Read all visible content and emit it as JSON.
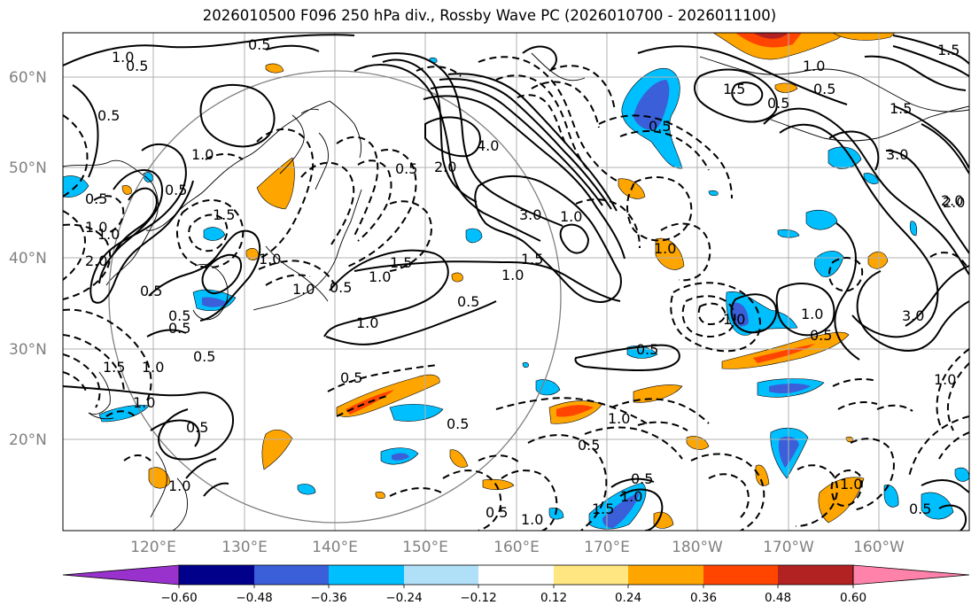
{
  "title": "2026010500 F096 250 hPa div., Rossby Wave PC (2026010700 - 2026011100)",
  "lat_labels": [
    "60°N",
    "50°N",
    "40°N",
    "30°N",
    "20°N"
  ],
  "lon_labels": [
    "120°E",
    "130°E",
    "140°E",
    "150°E",
    "160°E",
    "170°E",
    "180°W",
    "170°W",
    "160°W"
  ],
  "colorbar": {
    "colors": [
      "#9932cc",
      "#00008b",
      "#3a5fd9",
      "#00bfff",
      "#b0e0f8",
      "#ffffff",
      "#ffe680",
      "#ffa500",
      "#ff4500",
      "#b22222",
      "#ff82ab"
    ],
    "tick_labels": [
      "−0.60",
      "−0.48",
      "−0.36",
      "−0.24",
      "−0.12",
      "0.12",
      "0.24",
      "0.36",
      "0.48",
      "0.60"
    ]
  },
  "contour_labels": [
    "0.5",
    "1.0",
    "1.5",
    "2.0",
    "3.0",
    "4.0",
    "0.5",
    "1.0",
    "1.5",
    "0.5",
    "1.0",
    "0.5",
    "1.0",
    "1.5",
    "2.0",
    "1.5",
    "0.5",
    "3.0",
    "1.0",
    "0.5",
    "1.5",
    "0.5",
    "1.0",
    "0.5",
    "1.0",
    "0.5",
    "1.0",
    "3.0",
    "2.0",
    "1.5",
    "1.0",
    "0.5",
    "0.5",
    "1.0",
    "0.5",
    "1.0",
    "0.5",
    "1.0",
    "1.0",
    "0.5",
    "0.5",
    "1.0",
    "0.5",
    "1.0",
    "1.5",
    "0.5",
    "1.0",
    "2.0",
    "1.0",
    "1.5",
    "1.0",
    "0.5",
    "1.0",
    "0.5",
    "1.0",
    "0.5",
    "0.5",
    "1.0",
    "0.5",
    "0.5",
    "1.0",
    "0.5"
  ]
}
